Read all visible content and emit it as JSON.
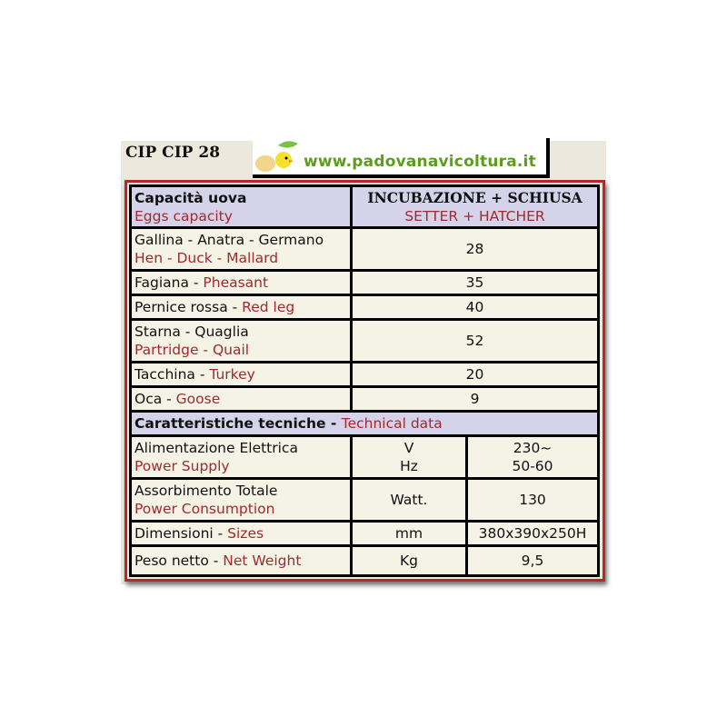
{
  "model": "CIP CIP 28",
  "logo": {
    "url": "www.padovanavicoltura.it"
  },
  "capacity": {
    "header": {
      "it": "Capacità uova",
      "en": "Eggs capacity",
      "col_it": "INCUBAZIONE + SCHIUSA",
      "col_en": "SETTER + HATCHER"
    },
    "rows": [
      {
        "it": "Gallina - Anatra - Germano",
        "en": "Hen - Duck - Mallard",
        "value": "28",
        "two_line": true
      },
      {
        "it": "Fagiana - ",
        "en": "Pheasant",
        "value": "35"
      },
      {
        "it": "Pernice rossa - ",
        "en": "Red leg",
        "value": "40"
      },
      {
        "it": "Starna - Quaglia",
        "en": "Partridge - Quail",
        "value": "52",
        "two_line": true
      },
      {
        "it": "Tacchina - ",
        "en": "Turkey",
        "value": "20"
      },
      {
        "it": "Oca - ",
        "en": "Goose",
        "value": "9"
      }
    ]
  },
  "technical": {
    "header": {
      "it": "Caratteristiche tecniche - ",
      "en": "Technical data"
    },
    "rows": [
      {
        "it": "Alimentazione Elettrica",
        "en": "Power Supply",
        "unit": "V",
        "unit2": "Hz",
        "value": "230~",
        "value2": "50-60"
      },
      {
        "it": "Assorbimento Totale",
        "en": "Power Consumption",
        "unit": "Watt.",
        "value": "130"
      },
      {
        "it": "Dimensioni - ",
        "en": "Sizes",
        "unit": "mm",
        "value": "380x390x250H"
      },
      {
        "it": "Peso netto - ",
        "en": "Net Weight",
        "unit": "Kg",
        "value": "9,5"
      }
    ]
  },
  "colors": {
    "frame": "#b8262b",
    "english_text": "#a02a2e",
    "header_bg": "#d5d3ea",
    "logo_text": "#5a9e1a"
  }
}
